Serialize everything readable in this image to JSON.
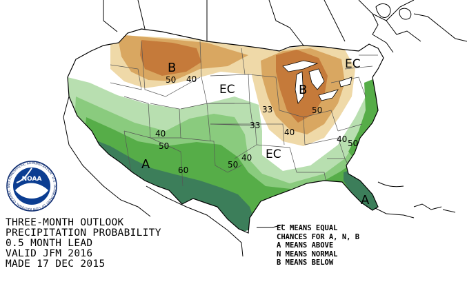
{
  "caption": {
    "lines": [
      "THREE-MONTH OUTLOOK",
      "PRECIPITATION PROBABILITY",
      "0.5 MONTH LEAD",
      "VALID JFM 2016",
      "MADE 17 DEC 2015"
    ]
  },
  "legend": {
    "lines": [
      "EC MEANS EQUAL",
      "CHANCES FOR A, N, B",
      "A MEANS ABOVE",
      "N MEANS NORMAL",
      "B MEANS BELOW"
    ]
  },
  "map_labels": {
    "b_northwest": "B",
    "b_great_lakes": "B",
    "a_southwest": "A",
    "a_florida": "A",
    "ec_plains": "EC",
    "ec_northeast": "EC",
    "ec_south": "EC",
    "c50_nw": "50",
    "c40_nw": "40",
    "c33_mid": "33",
    "c50_gl": "50",
    "c40_gl": "40",
    "c33_plains": "33",
    "c40_sw": "40",
    "c50_sw": "50",
    "c60_sw": "60",
    "c50_tx": "50",
    "c40_tx": "40",
    "c40_se": "40",
    "c50_se": "50"
  },
  "logo": {
    "center_text": "NOAA",
    "ring_text": "NATIONAL OCEANIC AND ATMOSPHERIC ADMINISTRATION · U.S. DEPARTMENT OF COMMERCE"
  },
  "colors": {
    "below_33": "#efd9a8",
    "below_40": "#d9a761",
    "below_50": "#c57a3a",
    "above_33": "#b8dfb0",
    "above_40": "#8acb7e",
    "above_50": "#56ad48",
    "above_60": "#3c7e5a",
    "ec": "#ffffff",
    "outline": "#000000"
  }
}
